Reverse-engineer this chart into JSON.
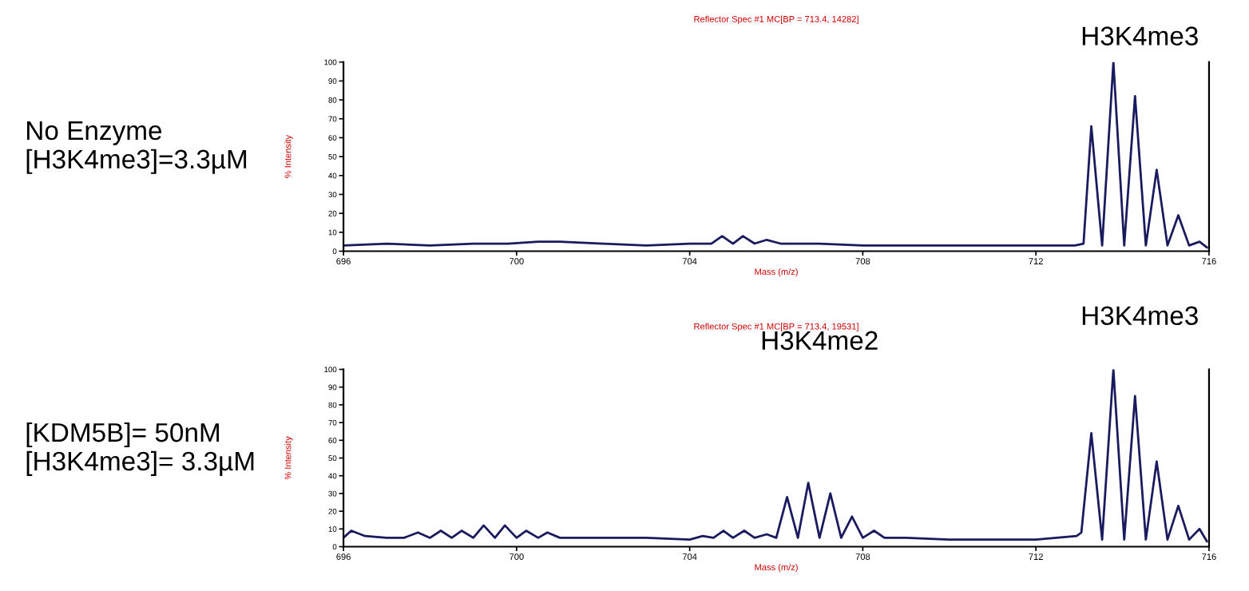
{
  "chart_data": [
    {
      "type": "line",
      "title": "Reflector Spec #1 MC[BP = 713.4, 14282]",
      "xlabel": "Mass (m/z)",
      "ylabel": "% Intensity",
      "annotations": [
        "No Enzyme\n[H3K4me3]=3.3µM",
        "H3K4me3"
      ],
      "series": [
        {
          "color": "#1a1a5e",
          "x": [
            696,
            697,
            698,
            699,
            699.8,
            700.5,
            701,
            702,
            703,
            704,
            704.5,
            704.75,
            705.0,
            705.23,
            705.5,
            705.78,
            706.1,
            707,
            708,
            709,
            710,
            711,
            712,
            712.9,
            713.1,
            713.28,
            713.53,
            713.79,
            714.04,
            714.29,
            714.54,
            714.79,
            715.04,
            715.29,
            715.54,
            715.78,
            715.95
          ],
          "values": [
            3,
            4,
            3,
            4,
            4,
            5,
            5,
            4,
            3,
            4,
            4,
            8,
            4,
            8,
            4,
            6,
            4,
            4,
            3,
            3,
            3,
            3,
            3,
            3,
            4,
            66,
            3,
            100,
            3,
            82,
            3,
            43,
            3,
            19,
            3,
            5,
            2
          ]
        }
      ],
      "xlim": [
        696,
        716
      ],
      "xticks": [
        696,
        700,
        704,
        708,
        712,
        716
      ],
      "ylim": [
        0,
        100
      ],
      "yticks": [
        0,
        10,
        20,
        30,
        40,
        50,
        60,
        70,
        80,
        90,
        100
      ],
      "grid": false,
      "legend": false
    },
    {
      "type": "line",
      "title": "Reflector Spec #1 MC[BP = 713.4, 19531]",
      "xlabel": "Mass (m/z)",
      "ylabel": "% Intensity",
      "annotations": [
        "[KDM5B]= 50nM\n[H3K4me3]= 3.3µM",
        "H3K4me2",
        "H3K4me3"
      ],
      "series": [
        {
          "color": "#1a1a5e",
          "x": [
            696,
            696.18,
            696.5,
            697,
            697.4,
            697.72,
            698.0,
            698.25,
            698.5,
            698.73,
            699.0,
            699.24,
            699.5,
            699.73,
            700.0,
            700.22,
            700.5,
            700.71,
            701.0,
            702,
            703,
            704,
            704.3,
            704.55,
            704.78,
            705.0,
            705.26,
            705.5,
            705.78,
            706.0,
            706.25,
            706.5,
            706.74,
            707.0,
            707.25,
            707.5,
            707.75,
            708.0,
            708.26,
            708.5,
            709,
            710,
            711,
            712,
            712.94,
            713.05,
            713.28,
            713.53,
            713.79,
            714.04,
            714.29,
            714.54,
            714.79,
            715.04,
            715.29,
            715.54,
            715.78,
            715.95
          ],
          "values": [
            5,
            9,
            6,
            5,
            5,
            8,
            5,
            9,
            5,
            9,
            5,
            12,
            5,
            12,
            5,
            9,
            5,
            8,
            5,
            5,
            5,
            4,
            6,
            5,
            9,
            5,
            9,
            5,
            7,
            5,
            28,
            5,
            36,
            5,
            30,
            5,
            17,
            5,
            9,
            5,
            5,
            4,
            4,
            4,
            6,
            8,
            64,
            4,
            100,
            4,
            85,
            4,
            48,
            4,
            23,
            4,
            10,
            3
          ]
        }
      ],
      "xlim": [
        696,
        716
      ],
      "xticks": [
        696,
        700,
        704,
        708,
        712,
        716
      ],
      "ylim": [
        0,
        100
      ],
      "yticks": [
        0,
        10,
        20,
        30,
        40,
        50,
        60,
        70,
        80,
        90,
        100
      ],
      "grid": false,
      "legend": false
    }
  ]
}
